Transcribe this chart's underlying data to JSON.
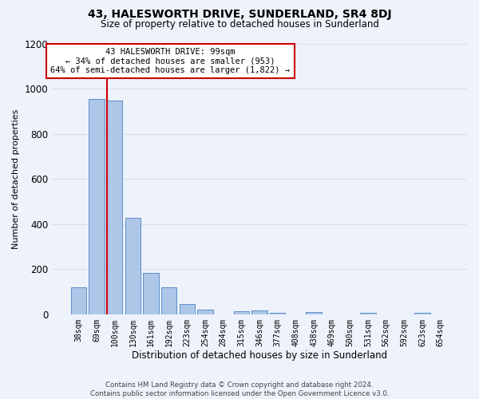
{
  "title": "43, HALESWORTH DRIVE, SUNDERLAND, SR4 8DJ",
  "subtitle": "Size of property relative to detached houses in Sunderland",
  "xlabel": "Distribution of detached houses by size in Sunderland",
  "ylabel": "Number of detached properties",
  "footer_line1": "Contains HM Land Registry data © Crown copyright and database right 2024.",
  "footer_line2": "Contains public sector information licensed under the Open Government Licence v3.0.",
  "categories": [
    "38sqm",
    "69sqm",
    "100sqm",
    "130sqm",
    "161sqm",
    "192sqm",
    "223sqm",
    "254sqm",
    "284sqm",
    "315sqm",
    "346sqm",
    "377sqm",
    "408sqm",
    "438sqm",
    "469sqm",
    "500sqm",
    "531sqm",
    "562sqm",
    "592sqm",
    "623sqm",
    "654sqm"
  ],
  "values": [
    120,
    955,
    948,
    428,
    183,
    120,
    45,
    22,
    0,
    15,
    18,
    8,
    0,
    10,
    0,
    0,
    8,
    0,
    0,
    8,
    0
  ],
  "bar_color": "#aec6e8",
  "bar_edge_color": "#5b8fc9",
  "background_color": "#eef2fb",
  "grid_color": "#d8dff0",
  "highlight_bar_index": 2,
  "highlight_line_color": "#cc0000",
  "annotation_line1": "43 HALESWORTH DRIVE: 99sqm",
  "annotation_line2": "← 34% of detached houses are smaller (953)",
  "annotation_line3": "64% of semi-detached houses are larger (1,822) →",
  "annotation_box_facecolor": "#ffffff",
  "annotation_box_edgecolor": "#cc0000",
  "ylim": [
    0,
    1200
  ],
  "yticks": [
    0,
    200,
    400,
    600,
    800,
    1000,
    1200
  ],
  "title_fontsize": 10,
  "subtitle_fontsize": 8.5,
  "ylabel_fontsize": 8,
  "xlabel_fontsize": 8.5,
  "tick_fontsize": 7,
  "footer_fontsize": 6.2,
  "annotation_fontsize": 7.5
}
